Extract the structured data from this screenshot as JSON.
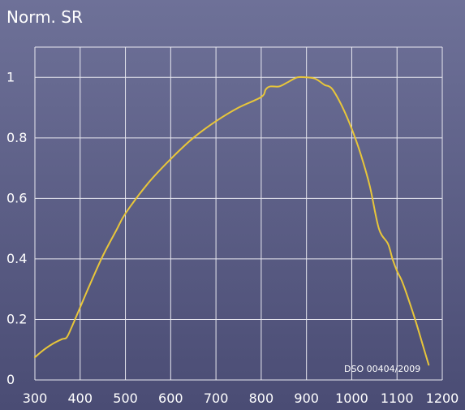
{
  "chart_data": {
    "type": "line",
    "title": "",
    "ylabel": "Norm. SR",
    "xlabel": "",
    "xlim": [
      300,
      1200
    ],
    "ylim": [
      0,
      1.1
    ],
    "xticks": [
      {
        "value": 300,
        "label": "300"
      },
      {
        "value": 400,
        "label": "400"
      },
      {
        "value": 500,
        "label": "500"
      },
      {
        "value": 600,
        "label": "600"
      },
      {
        "value": 700,
        "label": "700"
      },
      {
        "value": 800,
        "label": "800"
      },
      {
        "value": 900,
        "label": "900"
      },
      {
        "value": 1000,
        "label": "1000"
      },
      {
        "value": 1100,
        "label": "1100"
      },
      {
        "value": 1200,
        "label": "1200"
      }
    ],
    "yticks": [
      {
        "value": 0,
        "label": "0"
      },
      {
        "value": 0.2,
        "label": "0.2"
      },
      {
        "value": 0.4,
        "label": "0.4"
      },
      {
        "value": 0.6,
        "label": "0.6"
      },
      {
        "value": 0.8,
        "label": "0.8"
      },
      {
        "value": 1.0,
        "label": "1"
      }
    ],
    "grid": true,
    "legend": "none",
    "annotation": "DSO 00404/2009",
    "colors": {
      "background_top": "#6e7198",
      "background_bottom": "#4a4c74",
      "grid": "#e8e8f0",
      "line": "#e8c63a",
      "text": "#ffffff"
    },
    "series": [
      {
        "x": [
          300,
          320,
          340,
          360,
          370,
          380,
          400,
          420,
          450,
          480,
          500,
          550,
          600,
          650,
          700,
          750,
          800,
          810,
          820,
          840,
          860,
          880,
          900,
          920,
          940,
          950,
          960,
          980,
          1000,
          1020,
          1040,
          1060,
          1080,
          1090,
          1100,
          1110,
          1120,
          1140,
          1160,
          1170
        ],
        "y": [
          0.075,
          0.1,
          0.12,
          0.135,
          0.14,
          0.17,
          0.24,
          0.31,
          0.41,
          0.495,
          0.55,
          0.65,
          0.73,
          0.8,
          0.855,
          0.9,
          0.935,
          0.96,
          0.97,
          0.97,
          0.985,
          1.0,
          1.0,
          0.995,
          0.975,
          0.97,
          0.955,
          0.9,
          0.83,
          0.745,
          0.64,
          0.5,
          0.45,
          0.4,
          0.36,
          0.33,
          0.29,
          0.2,
          0.1,
          0.05
        ]
      }
    ]
  }
}
